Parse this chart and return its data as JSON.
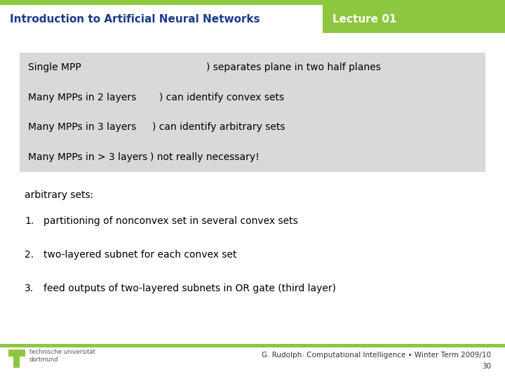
{
  "title_left": "Introduction to Artificial Neural Networks",
  "title_right": "Lecture 01",
  "header_title_color": "#1a3a8c",
  "header_badge_color": "#8dc63f",
  "header_badge_text_color": "#ffffff",
  "top_bar_color": "#8dc63f",
  "table_bg_color": "#d9d9d9",
  "table_rows": [
    [
      "Single MPP",
      ") separates plane in two half planes"
    ],
    [
      "Many MPPs in 2 layers",
      ") can identify convex sets"
    ],
    [
      "Many MPPs in 3 layers",
      ") can identify arbitrary sets"
    ],
    [
      "Many MPPs in > 3 layers",
      ") not really necessary!"
    ]
  ],
  "col2_offsets": [
    0.4,
    0.3,
    0.285,
    0.28
  ],
  "arbitrary_label": "arbitrary sets:",
  "list_items": [
    "partitioning of nonconvex set in several convex sets",
    "two-layered subnet for each convex set",
    "feed outputs of two-layered subnets in OR gate (third layer)"
  ],
  "footer_text": "G. Rudolph: Computational Intelligence • Winter Term 2009/10",
  "footer_page": "30",
  "footer_logo_color": "#8dc63f",
  "bg_color": "#ffffff",
  "body_text_color": "#000000",
  "font_size_header": 11,
  "font_size_body": 10,
  "font_size_footer": 7.5
}
